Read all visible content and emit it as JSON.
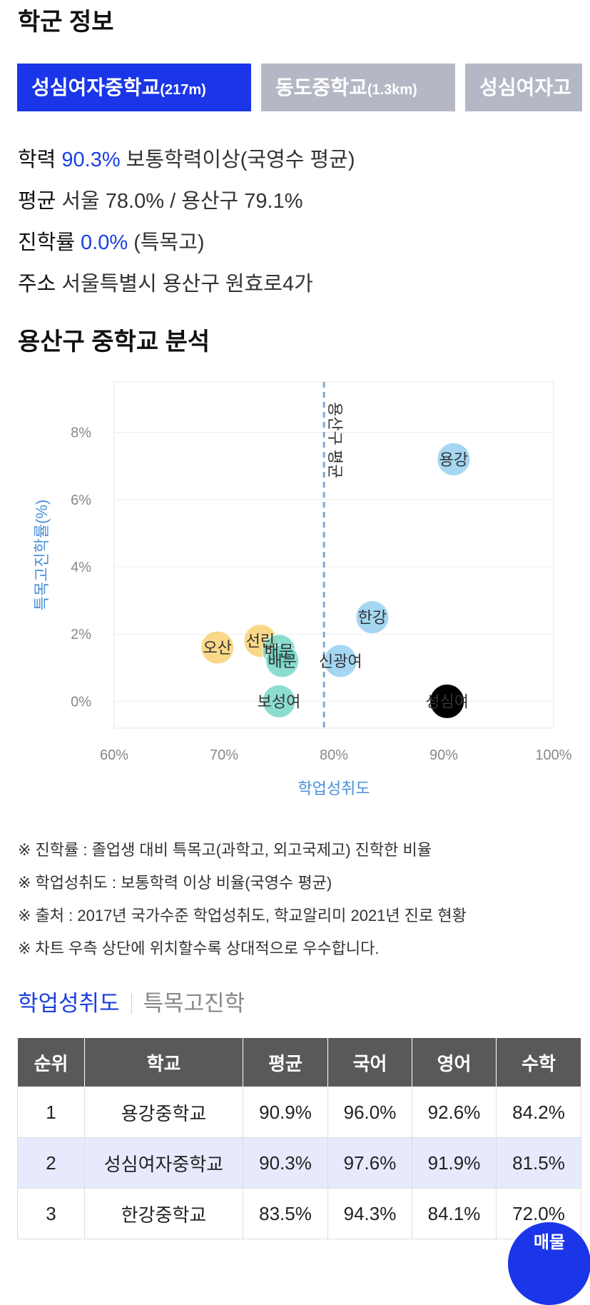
{
  "school_info": {
    "title": "학군 정보",
    "tabs": [
      {
        "name": "성심여자중학교",
        "distance": "(217m)",
        "active": true
      },
      {
        "name": "동도중학교",
        "distance": "(1.3km)",
        "active": false
      },
      {
        "name": "성심여자고",
        "distance": "",
        "active": false
      }
    ],
    "achievement": {
      "key": "학력",
      "value": "90.3%",
      "desc": "보통학력이상(국영수 평균)"
    },
    "average": {
      "key": "평균",
      "value": "서울 78.0% / 용산구 79.1%"
    },
    "advance_rate": {
      "key": "진학률",
      "value": "0.0%",
      "desc": "(특목고)"
    },
    "address": {
      "key": "주소",
      "value": "서울특별시 용산구 원효로4가"
    }
  },
  "analysis": {
    "title": "용산구 중학교 분석"
  },
  "chart_data": {
    "type": "scatter",
    "xlabel": "학업성취도",
    "ylabel": "특목고진학률(%)",
    "xlim": [
      60,
      100
    ],
    "ylim": [
      -0.8,
      9.5
    ],
    "x_ticks": [
      60,
      70,
      80,
      90,
      100
    ],
    "x_tick_labels": [
      "60%",
      "70%",
      "80%",
      "90%",
      "100%"
    ],
    "y_ticks": [
      0,
      2,
      4,
      6,
      8
    ],
    "y_tick_labels": [
      "0%",
      "2%",
      "4%",
      "6%",
      "8%"
    ],
    "grid": true,
    "reference_line": {
      "x": 79.1,
      "label": "용산구 평균"
    },
    "points": [
      {
        "label": "용강",
        "x": 90.9,
        "y": 7.2,
        "color": "#8ecdf0"
      },
      {
        "label": "한강",
        "x": 83.5,
        "y": 2.5,
        "color": "#8ecdf0"
      },
      {
        "label": "신광여",
        "x": 80.6,
        "y": 1.2,
        "color": "#8ecdf0"
      },
      {
        "label": "오산",
        "x": 69.4,
        "y": 1.6,
        "color": "#f7cf6a"
      },
      {
        "label": "선린",
        "x": 73.3,
        "y": 1.8,
        "color": "#f7cf6a"
      },
      {
        "label": "배문",
        "x": 75.0,
        "y": 1.5,
        "color": "#6fd5c5"
      },
      {
        "label": "배문",
        "x": 75.3,
        "y": 1.2,
        "color": "#6fd5c5"
      },
      {
        "label": "보성여",
        "x": 75.0,
        "y": 0.0,
        "color": "#6fd5c5"
      },
      {
        "label": "성심여",
        "x": 90.3,
        "y": 0.0,
        "color": "#000000"
      }
    ]
  },
  "notes": [
    "※ 진학률 : 졸업생 대비 특목고(과학고, 외고국제고) 진학한 비율",
    "※ 학업성취도 : 보통학력 이상 비율(국영수 평균)",
    "※ 출처 : 2017년 국가수준 학업성취도, 학교알리미 2021년 진로 현황",
    "※ 차트 우측 상단에 위치할수록 상대적으로 우수합니다."
  ],
  "ranking": {
    "tabs": [
      "학업성취도",
      "특목고진학"
    ],
    "columns": [
      "순위",
      "학교",
      "평균",
      "국어",
      "영어",
      "수학"
    ],
    "rows": [
      [
        "1",
        "용강중학교",
        "90.9%",
        "96.0%",
        "92.6%",
        "84.2%"
      ],
      [
        "2",
        "성심여자중학교",
        "90.3%",
        "97.6%",
        "91.9%",
        "81.5%"
      ],
      [
        "3",
        "한강중학교",
        "83.5%",
        "94.3%",
        "84.1%",
        "72.0%"
      ]
    ],
    "highlight_row": 1
  },
  "fab": {
    "label": "매물"
  }
}
